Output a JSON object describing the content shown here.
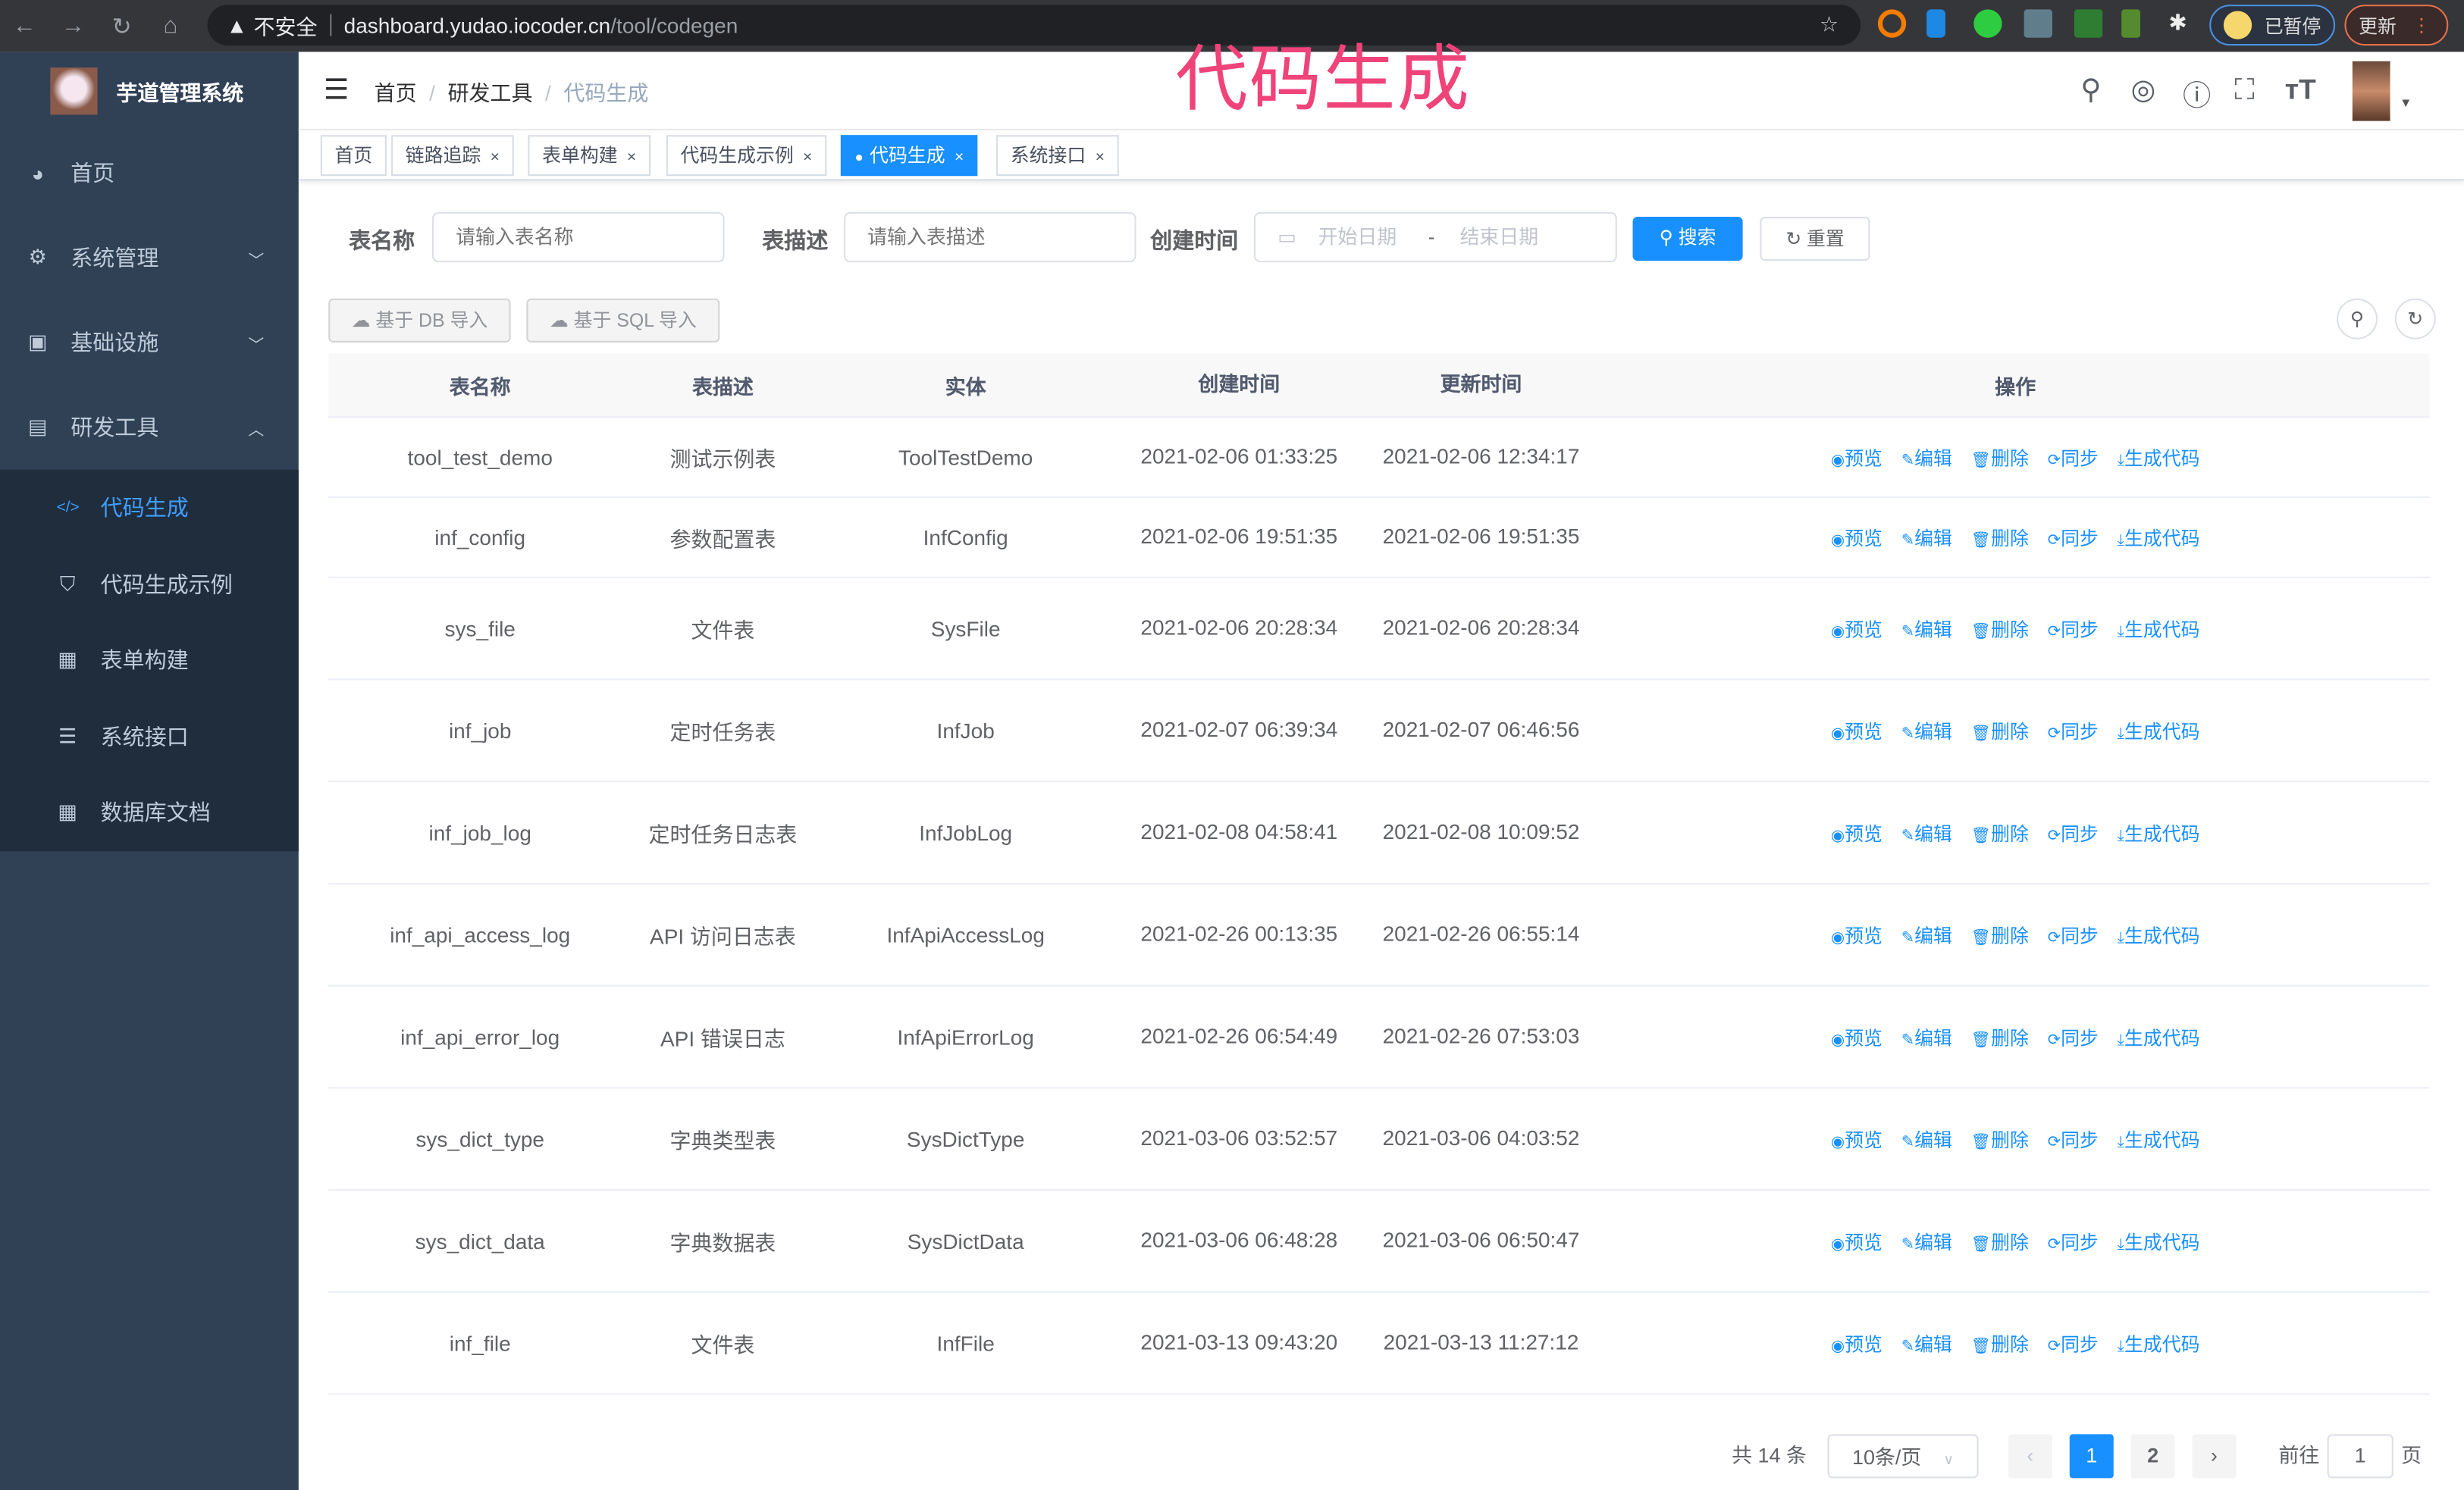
{
  "browser": {
    "insecure_label": "不安全",
    "url_host": "dashboard.yudao.iocoder.cn",
    "url_path": "/tool/codegen",
    "paused_label": "已暂停",
    "update_label": "更新"
  },
  "overlay_title": "代码生成",
  "sidebar": {
    "title": "芋道管理系统",
    "items": [
      {
        "label": "首页",
        "icon": "dashboard-icon"
      },
      {
        "label": "系统管理",
        "icon": "gear-icon"
      },
      {
        "label": "基础设施",
        "icon": "monitor-icon"
      },
      {
        "label": "研发工具",
        "icon": "toolbox-icon"
      }
    ],
    "sub_items": [
      {
        "label": "代码生成",
        "icon": "code-icon",
        "active": true
      },
      {
        "label": "代码生成示例",
        "icon": "shield-icon"
      },
      {
        "label": "表单构建",
        "icon": "form-icon"
      },
      {
        "label": "系统接口",
        "icon": "sliders-icon"
      },
      {
        "label": "数据库文档",
        "icon": "table-icon"
      }
    ]
  },
  "breadcrumb": [
    "首页",
    "研发工具",
    "代码生成"
  ],
  "tags": [
    {
      "label": "首页"
    },
    {
      "label": "链路追踪"
    },
    {
      "label": "表单构建"
    },
    {
      "label": "代码生成示例"
    },
    {
      "label": "代码生成",
      "active": true
    },
    {
      "label": "系统接口"
    }
  ],
  "search": {
    "table_name_label": "表名称",
    "table_name_placeholder": "请输入表名称",
    "table_desc_label": "表描述",
    "table_desc_placeholder": "请输入表描述",
    "created_label": "创建时间",
    "start_placeholder": "开始日期",
    "range_sep": "-",
    "end_placeholder": "结束日期",
    "search_btn": "搜索",
    "reset_btn": "重置"
  },
  "toolbar": {
    "import_db": "基于 DB 导入",
    "import_sql": "基于 SQL 导入"
  },
  "table": {
    "headers": [
      "表名称",
      "表描述",
      "实体",
      "创建时间",
      "更新时间",
      "操作"
    ],
    "actions": [
      "预览",
      "编辑",
      "删除",
      "同步",
      "生成代码"
    ],
    "rows": [
      [
        "tool_test_demo",
        "测试示例表",
        "ToolTestDemo",
        "2021-02-06 01:33:25",
        "2021-02-06 12:34:17"
      ],
      [
        "inf_config",
        "参数配置表",
        "InfConfig",
        "2021-02-06 19:51:35",
        "2021-02-06 19:51:35"
      ],
      [
        "sys_file",
        "文件表",
        "SysFile",
        "2021-02-06 20:28:34",
        "2021-02-06 20:28:34"
      ],
      [
        "inf_job",
        "定时任务表",
        "InfJob",
        "2021-02-07 06:39:34",
        "2021-02-07 06:46:56"
      ],
      [
        "inf_job_log",
        "定时任务日志表",
        "InfJobLog",
        "2021-02-08 04:58:41",
        "2021-02-08 10:09:52"
      ],
      [
        "inf_api_access_log",
        "API 访问日志表",
        "InfApiAccessLog",
        "2021-02-26 00:13:35",
        "2021-02-26 06:55:14"
      ],
      [
        "inf_api_error_log",
        "API 错误日志",
        "InfApiErrorLog",
        "2021-02-26 06:54:49",
        "2021-02-26 07:53:03"
      ],
      [
        "sys_dict_type",
        "字典类型表",
        "SysDictType",
        "2021-03-06 03:52:57",
        "2021-03-06 04:03:52"
      ],
      [
        "sys_dict_data",
        "字典数据表",
        "SysDictData",
        "2021-03-06 06:48:28",
        "2021-03-06 06:50:47"
      ],
      [
        "inf_file",
        "文件表",
        "InfFile",
        "2021-03-13 09:43:20",
        "2021-03-13 11:27:12"
      ]
    ]
  },
  "pagination": {
    "total": "共 14 条",
    "page_size": "10条/页",
    "pages": [
      "1",
      "2"
    ],
    "current": "1",
    "goto_label": "前往",
    "goto_value": "1",
    "page_unit": "页"
  },
  "colors": {
    "primary": "#1890ff",
    "sidebar": "#304156",
    "overlay": "#f0437a"
  }
}
